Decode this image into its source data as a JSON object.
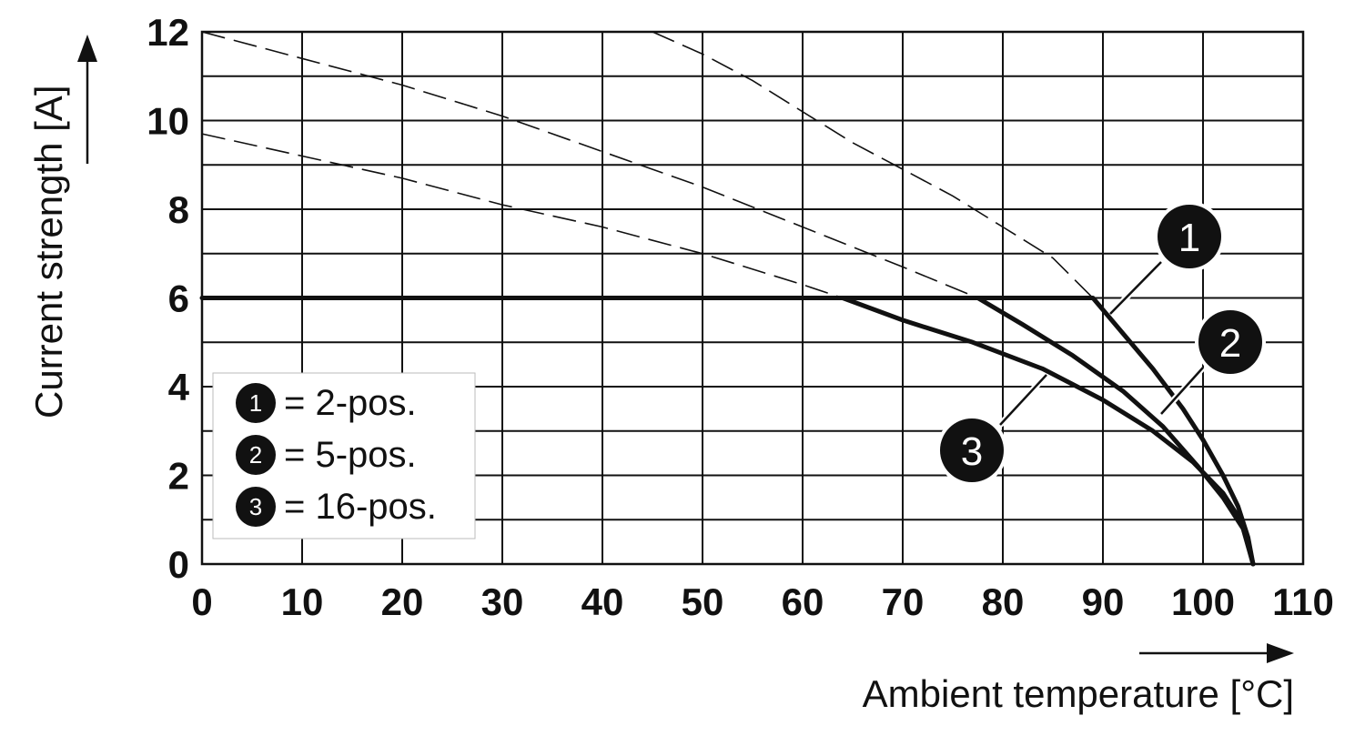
{
  "chart_data": {
    "type": "line",
    "xlabel": "Ambient temperature [°C]",
    "ylabel": "Current strength [A]",
    "xlim": [
      0,
      110
    ],
    "ylim": [
      0,
      12
    ],
    "x_ticks": [
      "0",
      "10",
      "20",
      "30",
      "40",
      "50",
      "60",
      "70",
      "80",
      "90",
      "100",
      "110"
    ],
    "y_ticks": [
      "0",
      "2",
      "4",
      "6",
      "8",
      "10",
      "12"
    ],
    "grid": true,
    "x_grid_step": 10,
    "y_grid_step": 1,
    "legend_position": "lower-left",
    "legend": [
      {
        "marker": "1",
        "text": "= 2-pos."
      },
      {
        "marker": "2",
        "text": "= 5-pos."
      },
      {
        "marker": "3",
        "text": "= 16-pos."
      }
    ],
    "series": [
      {
        "marker": "1",
        "solid": [
          [
            0,
            6
          ],
          [
            89,
            6
          ],
          [
            92,
            5.2
          ],
          [
            95,
            4.4
          ],
          [
            98,
            3.5
          ],
          [
            100,
            2.8
          ],
          [
            102,
            2.0
          ],
          [
            103.5,
            1.3
          ],
          [
            104.5,
            0.6
          ],
          [
            105,
            0
          ]
        ],
        "dashed": [
          [
            45,
            12
          ],
          [
            50,
            11.5
          ],
          [
            55,
            10.9
          ],
          [
            60,
            10.2
          ],
          [
            65,
            9.5
          ],
          [
            70,
            8.9
          ],
          [
            75,
            8.3
          ],
          [
            80,
            7.6
          ],
          [
            85,
            6.9
          ],
          [
            89,
            6
          ]
        ]
      },
      {
        "marker": "2",
        "solid": [
          [
            77.5,
            6
          ],
          [
            82,
            5.4
          ],
          [
            87,
            4.7
          ],
          [
            92,
            3.9
          ],
          [
            96,
            3.1
          ],
          [
            99.5,
            2.2
          ],
          [
            102,
            1.5
          ],
          [
            104,
            0.8
          ],
          [
            105,
            0
          ]
        ],
        "dashed": [
          [
            0,
            12
          ],
          [
            10,
            11.4
          ],
          [
            20,
            10.8
          ],
          [
            30,
            10.1
          ],
          [
            40,
            9.3
          ],
          [
            50,
            8.5
          ],
          [
            60,
            7.6
          ],
          [
            70,
            6.7
          ],
          [
            77.5,
            6
          ]
        ]
      },
      {
        "marker": "3",
        "solid": [
          [
            64,
            6
          ],
          [
            70,
            5.5
          ],
          [
            77,
            5.0
          ],
          [
            84,
            4.4
          ],
          [
            90,
            3.7
          ],
          [
            95,
            3.0
          ],
          [
            99,
            2.3
          ],
          [
            102,
            1.6
          ],
          [
            104,
            0.9
          ],
          [
            105,
            0
          ]
        ],
        "dashed": [
          [
            0,
            9.7
          ],
          [
            10,
            9.2
          ],
          [
            20,
            8.7
          ],
          [
            30,
            8.1
          ],
          [
            40,
            7.6
          ],
          [
            50,
            7.0
          ],
          [
            60,
            6.3
          ],
          [
            64,
            6
          ]
        ]
      }
    ]
  }
}
